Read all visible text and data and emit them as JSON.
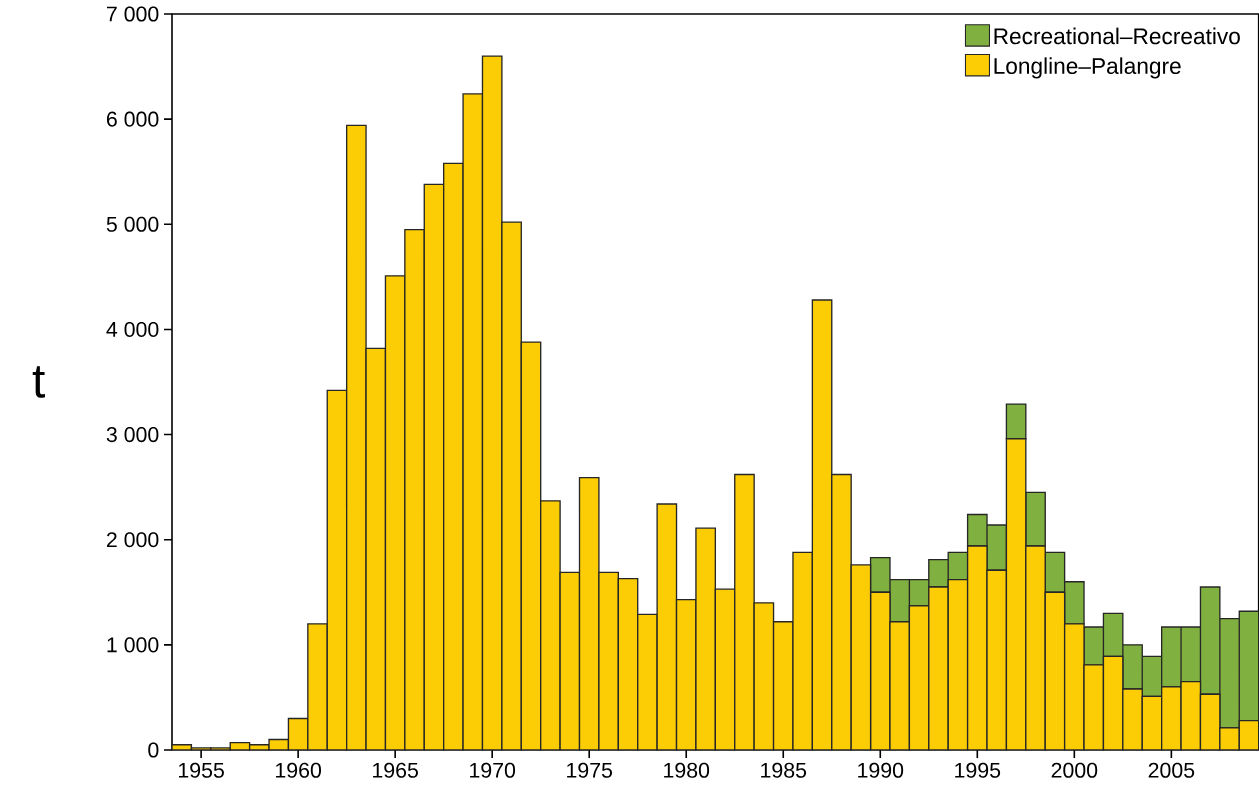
{
  "chart_data": {
    "type": "bar",
    "stacked": true,
    "ylabel": "t",
    "x": [
      1954,
      1955,
      1956,
      1957,
      1958,
      1959,
      1960,
      1961,
      1962,
      1963,
      1964,
      1965,
      1966,
      1967,
      1968,
      1969,
      1970,
      1971,
      1972,
      1973,
      1974,
      1975,
      1976,
      1977,
      1978,
      1979,
      1980,
      1981,
      1982,
      1983,
      1984,
      1985,
      1986,
      1987,
      1988,
      1989,
      1990,
      1991,
      1992,
      1993,
      1994,
      1995,
      1996,
      1997,
      1998,
      1999,
      2000,
      2001,
      2002,
      2003,
      2004,
      2005,
      2006,
      2007,
      2008,
      2009
    ],
    "series": [
      {
        "name": "Longline–Palangre",
        "color": "#fccc05",
        "values": [
          50,
          20,
          20,
          70,
          50,
          100,
          300,
          1200,
          3420,
          5940,
          3820,
          4510,
          4950,
          5380,
          5580,
          6240,
          6600,
          5020,
          3880,
          2370,
          1690,
          2590,
          1690,
          1630,
          1290,
          2340,
          1430,
          2110,
          1530,
          2620,
          1400,
          1220,
          1880,
          4280,
          2620,
          1760,
          1500,
          1220,
          1370,
          1550,
          1620,
          1940,
          1710,
          2960,
          1940,
          1500,
          1200,
          810,
          890,
          580,
          510,
          600,
          650,
          530,
          210,
          280
        ]
      },
      {
        "name": "Recreational–Recreativo",
        "color": "#80b040",
        "values": [
          null,
          null,
          null,
          null,
          null,
          null,
          null,
          null,
          null,
          null,
          null,
          null,
          null,
          null,
          null,
          null,
          null,
          null,
          null,
          null,
          null,
          null,
          null,
          null,
          null,
          null,
          null,
          null,
          null,
          null,
          null,
          null,
          null,
          null,
          null,
          null,
          330,
          400,
          250,
          260,
          260,
          300,
          430,
          330,
          510,
          380,
          400,
          360,
          410,
          420,
          380,
          570,
          520,
          1020,
          1040,
          1040
        ]
      }
    ],
    "xlim": [
      1953.5,
      2009.5
    ],
    "xticks": [
      1955,
      1960,
      1965,
      1970,
      1975,
      1980,
      1985,
      1990,
      1995,
      2000,
      2005
    ],
    "ylim": [
      0,
      7000
    ],
    "yticks": [
      0,
      {
        "value": 1000,
        "label": "1 000"
      },
      {
        "value": 2000,
        "label": "2 000"
      },
      {
        "value": 3000,
        "label": "3 000"
      },
      {
        "value": 4000,
        "label": "4 000"
      },
      {
        "value": 5000,
        "label": "5 000"
      },
      {
        "value": 6000,
        "label": "6 000"
      },
      {
        "value": 7000,
        "label": "7 000"
      }
    ],
    "legend": "top right",
    "grid": false
  }
}
